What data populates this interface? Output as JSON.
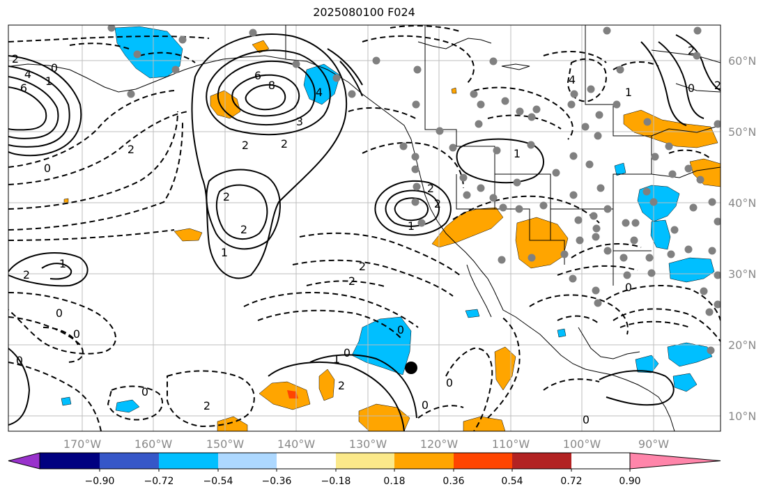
{
  "title": "2025080100 F024",
  "lon_labels": [
    "170°W",
    "160°W",
    "150°W",
    "140°W",
    "130°W",
    "120°W",
    "110°W",
    "100°W",
    "90°W"
  ],
  "lat_labels": [
    "60°N",
    "50°N",
    "40°N",
    "30°N",
    "20°N",
    "10°N"
  ],
  "colorbar": {
    "colors": [
      "#9932cc",
      "#000080",
      "#3657c8",
      "#00bfff",
      "#add8ff",
      "#ffffff",
      "#fbe98a",
      "#ffa500",
      "#ff4500",
      "#b22222",
      "#ff85aa"
    ],
    "tick_labels": [
      "−0.90",
      "−0.72",
      "−0.54",
      "−0.36",
      "−0.18",
      "0.18",
      "0.36",
      "0.54",
      "0.72",
      "0.90"
    ]
  },
  "contour_labels": [
    {
      "text": "2"
    },
    {
      "text": "4"
    },
    {
      "text": "6"
    },
    {
      "text": "1"
    },
    {
      "text": "0"
    },
    {
      "text": "6"
    },
    {
      "text": "8"
    },
    {
      "text": "4"
    },
    {
      "text": "3"
    },
    {
      "text": "2"
    },
    {
      "text": "2"
    },
    {
      "text": "2"
    },
    {
      "text": "2"
    },
    {
      "text": "1"
    },
    {
      "text": "2"
    },
    {
      "text": "2"
    },
    {
      "text": "1"
    },
    {
      "text": "2"
    },
    {
      "text": "2"
    },
    {
      "text": "0"
    },
    {
      "text": "1"
    },
    {
      "text": "0"
    },
    {
      "text": "2"
    },
    {
      "text": "0"
    },
    {
      "text": "0"
    },
    {
      "text": "1"
    },
    {
      "text": "2"
    },
    {
      "text": "0"
    },
    {
      "text": "0"
    },
    {
      "text": "0"
    },
    {
      "text": "0"
    },
    {
      "text": "2"
    },
    {
      "text": "0"
    },
    {
      "text": "1"
    },
    {
      "text": "0"
    },
    {
      "text": "2"
    },
    {
      "text": "2"
    },
    {
      "text": "1"
    },
    {
      "text": "0"
    },
    {
      "text": "2"
    },
    {
      "text": "4"
    },
    {
      "text": "0"
    }
  ]
}
